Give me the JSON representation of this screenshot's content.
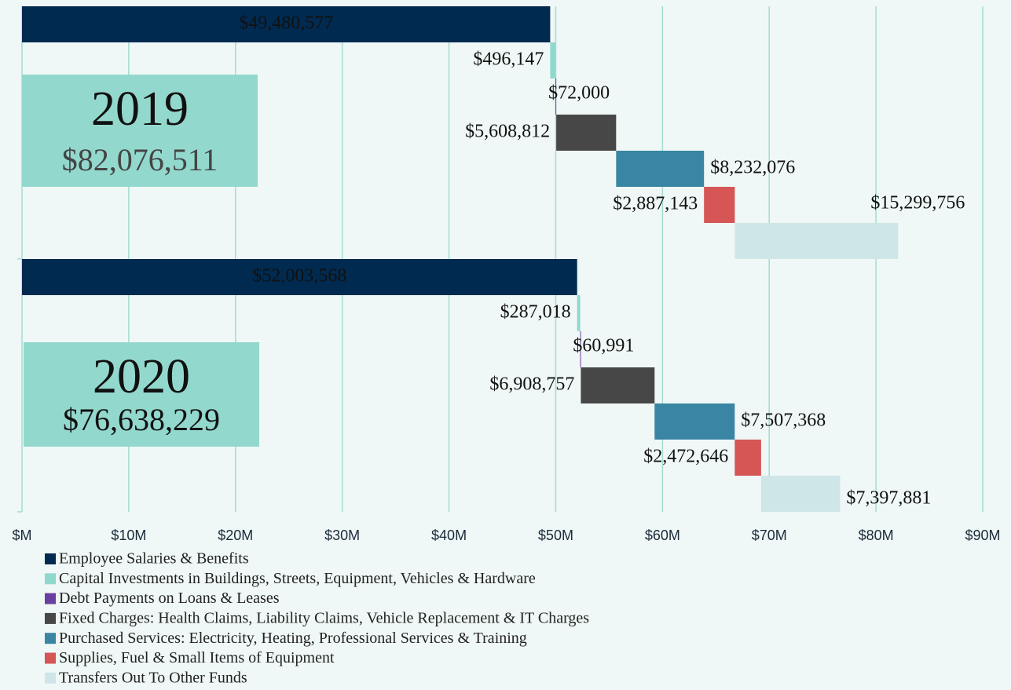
{
  "chart_data": {
    "type": "waterfall",
    "categories": [
      "Employee Salaries & Benefits",
      "Capital Investments in Buildings, Streets, Equipment, Vehicles & Hardware",
      "Debt Payments on Loans & Leases",
      "Fixed Charges: Health Claims, Liability Claims, Vehicle Replacement & IT Charges",
      "Purchased Services: Electricity, Heating, Professional Services & Training",
      "Supplies, Fuel & Small Items of Equipment",
      "Transfers Out To Other Funds"
    ],
    "colors": [
      "#012a50",
      "#8fd8cd",
      "#6b3fa0",
      "#474747",
      "#3a85a3",
      "#d65555",
      "#cfe6e8"
    ],
    "groups": [
      {
        "name": "2019",
        "total": 82076511,
        "total_label": "$82,076,511",
        "values": [
          49480577,
          496147,
          72000,
          5608812,
          8232076,
          2887143,
          15299756
        ],
        "value_labels": [
          "$49,480,577",
          "$496,147",
          "$72,000",
          "$5,608,812",
          "$8,232,076",
          "$2,887,143",
          "$15,299,756"
        ]
      },
      {
        "name": "2020",
        "total": 76638229,
        "total_label": "$76,638,229",
        "values": [
          52003568,
          287018,
          60991,
          6908757,
          7507368,
          2472646,
          7397881
        ],
        "value_labels": [
          "$52,003,568",
          "$287,018",
          "$60,991",
          "$6,908,757",
          "$7,507,368",
          "$2,472,646",
          "$7,397,881"
        ]
      }
    ],
    "xlim": [
      0,
      90000000
    ],
    "xticks": [
      {
        "value": 0,
        "label": "$M"
      },
      {
        "value": 10000000,
        "label": "$10M"
      },
      {
        "value": 20000000,
        "label": "$20M"
      },
      {
        "value": 30000000,
        "label": "$30M"
      },
      {
        "value": 40000000,
        "label": "$40M"
      },
      {
        "value": 50000000,
        "label": "$50M"
      },
      {
        "value": 60000000,
        "label": "$60M"
      },
      {
        "value": 70000000,
        "label": "$70M"
      },
      {
        "value": 80000000,
        "label": "$80M"
      },
      {
        "value": 90000000,
        "label": "$90M"
      }
    ],
    "grid": true
  }
}
